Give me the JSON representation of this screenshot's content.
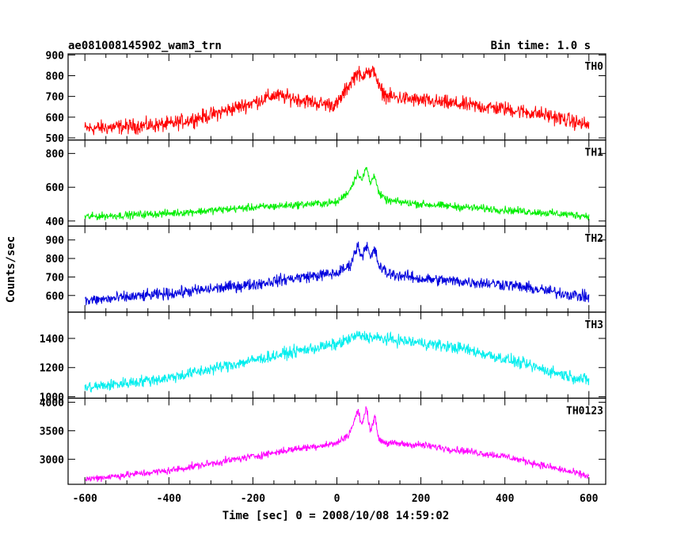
{
  "chart_data": {
    "type": "line",
    "title": "ae081008145902_wam3_trn",
    "subtitle": "Bin time: 1.0 s",
    "xlabel": "Time [sec] 0 = 2008/10/08 14:59:02",
    "ylabel": "Counts/sec",
    "xlim": [
      -640,
      640
    ],
    "x_ticks": [
      -600,
      -400,
      -200,
      0,
      200,
      400,
      600
    ],
    "grid": false,
    "panels": [
      {
        "name": "TH0",
        "color": "#ff0000",
        "ylim": [
          490,
          905
        ],
        "y_ticks": [
          500,
          600,
          700,
          800,
          900
        ],
        "profile": {
          "x": [
            -600,
            -400,
            -300,
            -200,
            -150,
            -100,
            -40,
            0,
            30,
            50,
            60,
            70,
            80,
            90,
            100,
            120,
            200,
            300,
            400,
            500,
            600
          ],
          "y": [
            545,
            565,
            610,
            670,
            705,
            690,
            665,
            660,
            760,
            820,
            780,
            840,
            800,
            830,
            740,
            700,
            680,
            660,
            640,
            610,
            560
          ]
        },
        "noise_amplitude": 40
      },
      {
        "name": "TH1",
        "color": "#00ee00",
        "ylim": [
          370,
          880
        ],
        "y_ticks": [
          400,
          600,
          800
        ],
        "profile": {
          "x": [
            -600,
            -400,
            -200,
            -100,
            0,
            30,
            50,
            60,
            70,
            80,
            90,
            100,
            120,
            200,
            400,
            600
          ],
          "y": [
            425,
            445,
            480,
            495,
            510,
            580,
            690,
            640,
            720,
            620,
            680,
            560,
            520,
            500,
            465,
            430
          ]
        },
        "noise_amplitude": 25
      },
      {
        "name": "TH2",
        "color": "#0000dd",
        "ylim": [
          510,
          975
        ],
        "y_ticks": [
          600,
          700,
          800,
          900
        ],
        "profile": {
          "x": [
            -600,
            -400,
            -200,
            -100,
            0,
            30,
            50,
            60,
            70,
            80,
            90,
            100,
            120,
            200,
            400,
            600
          ],
          "y": [
            570,
            610,
            660,
            695,
            720,
            760,
            870,
            810,
            880,
            800,
            850,
            760,
            720,
            690,
            660,
            590
          ]
        },
        "noise_amplitude": 35
      },
      {
        "name": "TH3",
        "color": "#00eeee",
        "ylim": [
          990,
          1580
        ],
        "y_ticks": [
          1000,
          1200,
          1400
        ],
        "profile": {
          "x": [
            -600,
            -400,
            -200,
            -100,
            0,
            50,
            100,
            200,
            300,
            400,
            500,
            600
          ],
          "y": [
            1060,
            1130,
            1250,
            1310,
            1360,
            1420,
            1400,
            1370,
            1330,
            1260,
            1180,
            1110
          ]
        },
        "noise_amplitude": 45
      },
      {
        "name": "TH0123",
        "color": "#ff00ff",
        "ylim": [
          2560,
          4070
        ],
        "y_ticks": [
          3000,
          3500,
          4000
        ],
        "profile": {
          "x": [
            -600,
            -400,
            -200,
            -100,
            0,
            30,
            50,
            60,
            70,
            80,
            90,
            100,
            120,
            200,
            400,
            600
          ],
          "y": [
            2650,
            2800,
            3050,
            3180,
            3280,
            3450,
            3850,
            3600,
            3900,
            3500,
            3750,
            3350,
            3280,
            3250,
            3050,
            2700
          ]
        },
        "noise_amplitude": 70
      }
    ]
  }
}
